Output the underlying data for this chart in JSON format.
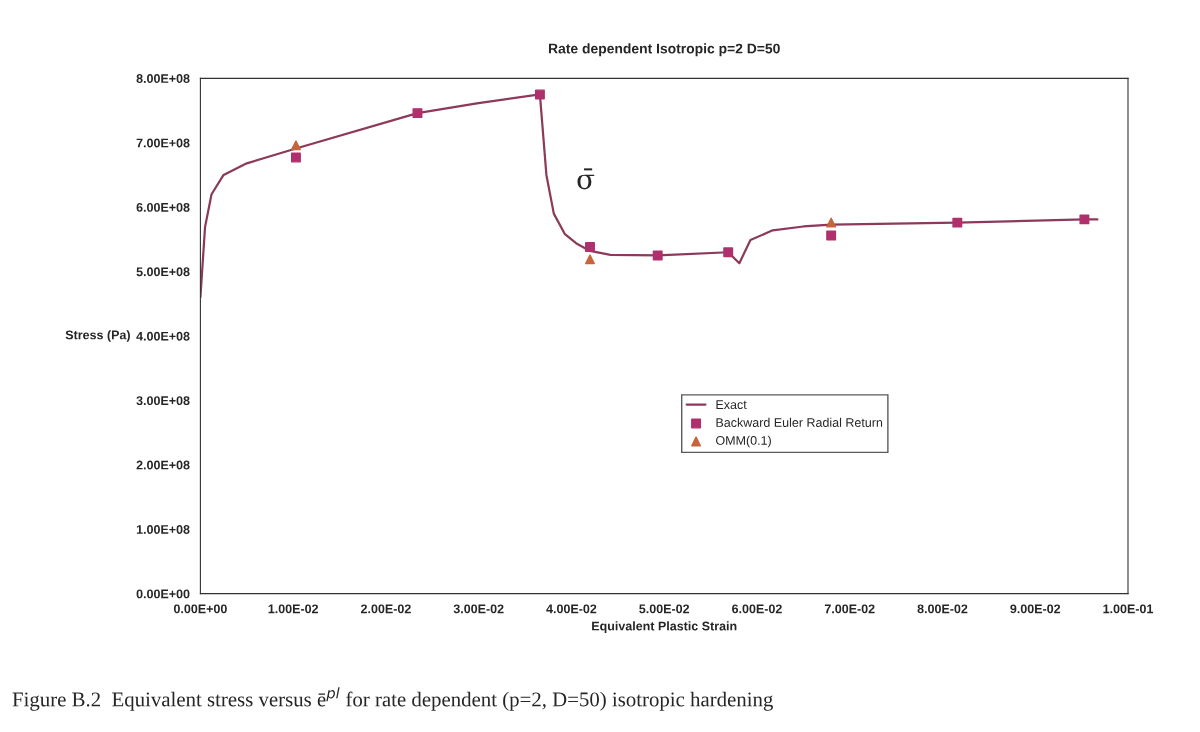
{
  "chart_data": {
    "type": "line",
    "title": "Rate dependent Isotropic p=2 D=50",
    "xlabel": "Equivalent Plastic Strain",
    "ylabel": "Stress (Pa)",
    "xlim": [
      0,
      0.1
    ],
    "ylim": [
      0,
      800000000
    ],
    "xticks": [
      {
        "value": 0,
        "label": "0.00E+00"
      },
      {
        "value": 0.01,
        "label": "1.00E-02"
      },
      {
        "value": 0.02,
        "label": "2.00E-02"
      },
      {
        "value": 0.03,
        "label": "3.00E-02"
      },
      {
        "value": 0.04,
        "label": "4.00E-02"
      },
      {
        "value": 0.05,
        "label": "5.00E-02"
      },
      {
        "value": 0.06,
        "label": "6.00E-02"
      },
      {
        "value": 0.07,
        "label": "7.00E-02"
      },
      {
        "value": 0.08,
        "label": "8.00E-02"
      },
      {
        "value": 0.09,
        "label": "9.00E-02"
      },
      {
        "value": 0.1,
        "label": "1.00E-01"
      }
    ],
    "yticks": [
      {
        "value": 0,
        "label": "0.00E+00"
      },
      {
        "value": 100000000,
        "label": "1.00E+08"
      },
      {
        "value": 200000000,
        "label": "2.00E+08"
      },
      {
        "value": 300000000,
        "label": "3.00E+08"
      },
      {
        "value": 400000000,
        "label": "4.00E+08"
      },
      {
        "value": 500000000,
        "label": "5.00E+08"
      },
      {
        "value": 600000000,
        "label": "6.00E+08"
      },
      {
        "value": 700000000,
        "label": "7.00E+08"
      },
      {
        "value": 800000000,
        "label": "8.00E+08"
      }
    ],
    "grid": false,
    "legend": "center",
    "series": [
      {
        "name": "Exact",
        "color": "#8b3a5a",
        "marker": "none",
        "line_style": "solid",
        "x": [
          0,
          0.0005,
          0.0012,
          0.0025,
          0.005,
          0.0103,
          0.0234,
          0.0298,
          0.0366,
          0.0373,
          0.0381,
          0.0393,
          0.0405,
          0.042,
          0.0442,
          0.0493,
          0.0569,
          0.0581,
          0.0593,
          0.0617,
          0.065,
          0.068,
          0.0816,
          0.0953,
          0.0967
        ],
        "values": [
          460000000,
          569000000,
          620000000,
          650000000,
          668000000,
          691000000,
          746000000,
          761000000,
          775000000,
          650000000,
          590000000,
          558000000,
          544000000,
          532000000,
          526000000,
          525000000,
          530000000,
          513000000,
          549000000,
          564000000,
          570000000,
          573000000,
          576000000,
          581000000,
          581000000
        ]
      },
      {
        "name": "Backward Euler Radial Return",
        "type": "scatter",
        "color": "#b0306e",
        "marker": "square",
        "x": [
          0.0103,
          0.0234,
          0.0366,
          0.042,
          0.0493,
          0.0569,
          0.068,
          0.0816,
          0.0953
        ],
        "values": [
          677000000,
          746000000,
          775000000,
          538000000,
          525000000,
          530000000,
          556000000,
          576000000,
          581000000
        ]
      },
      {
        "name": "OMM(0.1)",
        "type": "scatter",
        "color": "#c8643c",
        "marker": "triangle",
        "x": [
          0.0103,
          0.042,
          0.068
        ],
        "values": [
          696000000,
          519000000,
          576000000
        ]
      }
    ],
    "annotations": [
      "σ̄",
      "Figure B.2  Equivalent stress versus ē$^{pl}$ for rate dependent (p=2, D=50) isotropic hardening"
    ]
  }
}
